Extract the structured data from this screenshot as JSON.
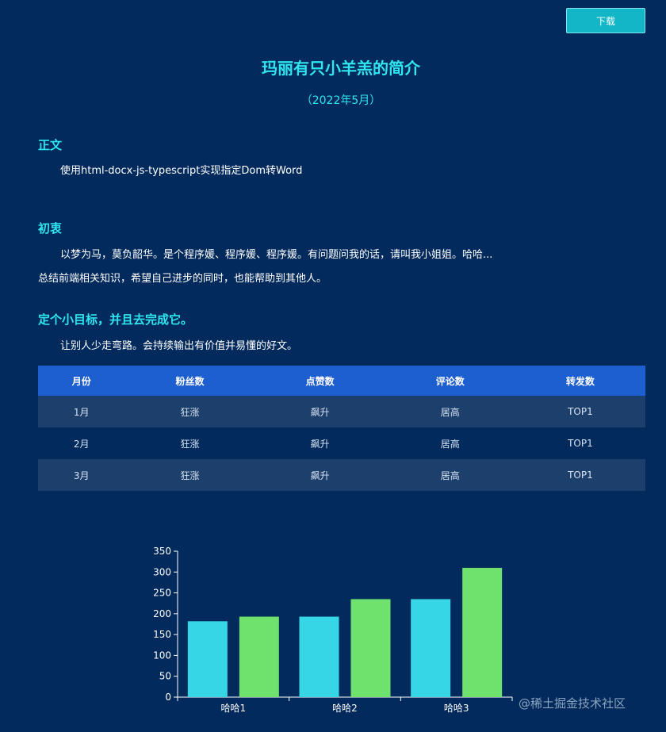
{
  "toolbar": {
    "download_label": "下载"
  },
  "document": {
    "title": "玛丽有只小羊羔的简介",
    "subtitle": "（2022年5月）",
    "sections": [
      {
        "heading": "正文",
        "paragraphs": [
          "使用html-docx-js-typescript实现指定Dom转Word"
        ]
      },
      {
        "heading": "初衷",
        "paragraphs": [
          "以梦为马，莫负韶华。是个程序媛、程序媛、程序媛。有问题问我的话，请叫我小姐姐。哈哈...",
          "总结前端相关知识，希望自己进步的同时，也能帮助到其他人。"
        ]
      },
      {
        "heading": "定个小目标，并且去完成它。",
        "paragraphs": [
          "让别人少走弯路。会持续输出有价值并易懂的好文。"
        ]
      }
    ]
  },
  "table": {
    "headers": [
      "月份",
      "粉丝数",
      "点赞数",
      "评论数",
      "转发数"
    ],
    "rows": [
      [
        "1月",
        "狂涨",
        "飙升",
        "居高",
        "TOP1"
      ],
      [
        "2月",
        "狂涨",
        "飙升",
        "居高",
        "TOP1"
      ],
      [
        "3月",
        "狂涨",
        "飙升",
        "居高",
        "TOP1"
      ]
    ]
  },
  "chart_data": {
    "type": "bar",
    "categories": [
      "哈哈1",
      "哈哈2",
      "哈哈3"
    ],
    "series": [
      {
        "values": [
          182,
          193,
          235
        ],
        "color": "#36d6e6"
      },
      {
        "values": [
          193,
          235,
          310
        ],
        "color": "#6ee26c"
      }
    ],
    "ylim": [
      0,
      350
    ],
    "yticks": [
      0,
      50,
      100,
      150,
      200,
      250,
      300,
      350
    ],
    "xlabel": "",
    "ylabel": "",
    "title": ""
  },
  "watermark": "@稀土掘金技术社区"
}
